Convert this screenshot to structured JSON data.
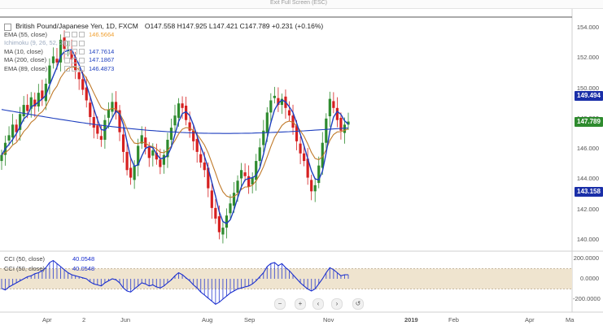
{
  "header": {
    "exit_full_screen": "Exit Full Screen (ESC)",
    "symbol_title": "British Pound/Japanese Yen, 1D, FXCM",
    "ohlc": "O147.558  H147.925  L147.421  C147.789  +0.231 (+0.16%)"
  },
  "indicators": [
    {
      "name": "EMA (55, close)",
      "value": "146.5664",
      "color": "#f0a030"
    },
    {
      "name": "Ichimoku (9, 26, 52, 26)",
      "value": "",
      "color": "#8ab0d8"
    },
    {
      "name": "MA (10, close)",
      "value": "147.7614",
      "color": "#1e3fbf"
    },
    {
      "name": "MA (200, close)",
      "value": "147.1867",
      "color": "#1e3fbf"
    },
    {
      "name": "EMA (89, close)",
      "value": "146.4873",
      "color": "#1e3fbf"
    }
  ],
  "price_axis": {
    "ticks": [
      "154.000",
      "152.000",
      "150.000",
      "148.000",
      "146.000",
      "144.000",
      "142.000",
      "140.000"
    ],
    "labels": [
      {
        "text": "149.494",
        "value": 149.494,
        "color": "#1a2fa8"
      },
      {
        "text": "147.789",
        "value": 147.789,
        "color": "#2e8b2e"
      },
      {
        "text": "143.158",
        "value": 143.158,
        "color": "#1a2fa8"
      }
    ]
  },
  "cci_panel": {
    "legend": [
      {
        "name": "CCI (50, close)",
        "value": "40.0548"
      },
      {
        "name": "CCI (50, close)",
        "value": "40.0548"
      }
    ],
    "ticks": [
      "200.0000",
      "0.0000",
      "-200.0000"
    ]
  },
  "x_axis": {
    "ticks": [
      "Apr",
      "2",
      "Jun",
      "Aug",
      "Sep",
      "Nov",
      "2019",
      "Feb",
      "Apr",
      "Ma"
    ]
  },
  "nav_buttons": [
    "−",
    "+",
    "‹",
    "›",
    "↺"
  ],
  "colors": {
    "up": "#2e8b2e",
    "down": "#d62020",
    "ma10": "#1e3fbf",
    "ma200": "#1e3fbf",
    "ema55": "#c07a2a",
    "cci": "#1a2fcf",
    "cci_band": "#efe4cf"
  },
  "chart_data": {
    "type": "candlestick",
    "title": "British Pound/Japanese Yen, 1D, FXCM",
    "ylim": [
      139.2,
      155.0
    ],
    "closes": [
      145.6,
      146.4,
      146.9,
      147.6,
      147.1,
      148.3,
      148.9,
      148.5,
      149.4,
      148.8,
      149.7,
      149.3,
      150.3,
      151.5,
      152.1,
      151.7,
      153.2,
      152.6,
      152.5,
      151.9,
      151.2,
      150.6,
      149.9,
      149.2,
      148.1,
      147.4,
      147.0,
      146.6,
      147.9,
      148.6,
      149.1,
      148.4,
      147.1,
      145.8,
      144.6,
      144.1,
      144.9,
      146.2,
      146.9,
      146.1,
      145.4,
      145.9,
      145.3,
      144.8,
      145.6,
      146.6,
      147.4,
      148.2,
      149.0,
      148.7,
      147.9,
      147.2,
      146.5,
      145.8,
      145.1,
      144.6,
      143.4,
      142.1,
      141.4,
      140.5,
      140.8,
      141.6,
      142.4,
      143.1,
      143.9,
      144.6,
      144.2,
      143.5,
      144.1,
      145.2,
      146.1,
      147.2,
      148.4,
      149.2,
      149.5,
      148.9,
      149.3,
      148.7,
      148.2,
      147.4,
      146.5,
      145.7,
      145.2,
      144.1,
      143.2,
      143.6,
      144.9,
      146.4,
      148.0,
      149.3,
      148.7,
      147.9,
      147.2,
      147.6,
      147.8
    ],
    "cci_values": [
      -95,
      -110,
      -80,
      -60,
      -40,
      -20,
      0,
      20,
      30,
      50,
      60,
      80,
      110,
      160,
      180,
      150,
      120,
      90,
      60,
      40,
      30,
      20,
      10,
      0,
      -30,
      -50,
      -60,
      -70,
      -40,
      -20,
      0,
      -10,
      -40,
      -90,
      -120,
      -130,
      -100,
      -70,
      -40,
      -50,
      -70,
      -60,
      -80,
      -90,
      -70,
      -40,
      -10,
      30,
      60,
      40,
      10,
      -20,
      -60,
      -90,
      -130,
      -160,
      -190,
      -220,
      -250,
      -230,
      -200,
      -170,
      -140,
      -120,
      -100,
      -90,
      -80,
      -70,
      -50,
      -20,
      20,
      60,
      120,
      150,
      160,
      130,
      150,
      110,
      80,
      40,
      0,
      -40,
      -70,
      -100,
      -120,
      -100,
      -50,
      0,
      60,
      110,
      90,
      60,
      30,
      40,
      40.0548
    ]
  }
}
